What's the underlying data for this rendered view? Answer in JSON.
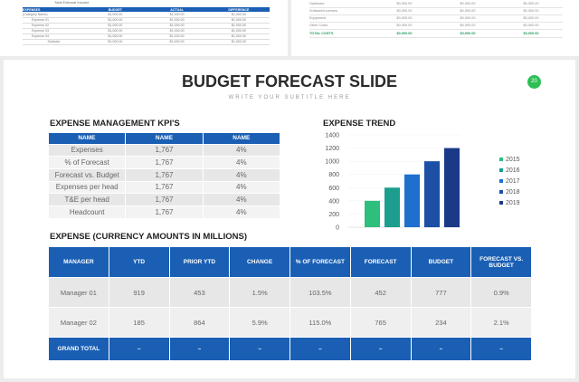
{
  "top_left": {
    "total_label": "Total External Income",
    "header": [
      "EXPENSES",
      "BUDGET",
      "ACTUAL",
      "DIFFERENCE"
    ],
    "rows": [
      [
        "(Category Name)",
        "$1,000.00",
        "$1,000.00",
        "$1,000.00"
      ],
      [
        "Expense 01",
        "$1,000.00",
        "$1,000.00",
        "$1,000.00"
      ],
      [
        "Expense 02",
        "$1,000.00",
        "$1,000.00",
        "$1,000.00"
      ],
      [
        "Expense 03",
        "$1,000.00",
        "$1,000.00",
        "$1,000.00"
      ],
      [
        "Expense 04",
        "$1,000.00",
        "$1,000.00",
        "$1,000.00"
      ],
      [
        "Subtotal",
        "$1,000.00",
        "$1,000.00",
        "$1,000.00"
      ]
    ]
  },
  "top_right": {
    "rows": [
      [
        "Hardware",
        "$0,000.00",
        "$0,000.00",
        "$0,000.00"
      ],
      [
        "Software/Licenses",
        "$0,000.00",
        "$0,000.00",
        "$0,000.00"
      ],
      [
        "Equipment",
        "$0,000.00",
        "$0,000.00",
        "$0,000.00"
      ],
      [
        "Other Costs",
        "$0,000.00",
        "$0,000.00",
        "$0,000.00"
      ],
      [
        "TOTAL COSTS",
        "$0,000.00",
        "$0,000.00",
        "$0,000.00"
      ]
    ]
  },
  "header": {
    "title": "BUDGET FORECAST SLIDE",
    "subtitle": "WRITE YOUR SUBTITLE HERE",
    "page_number": "20"
  },
  "kpi": {
    "heading": "EXPENSE MANAGEMENT KPI'S",
    "columns": [
      "NAME",
      "NAME",
      "NAME"
    ],
    "rows": [
      [
        "Expenses",
        "1,767",
        "4%"
      ],
      [
        "% of Forecast",
        "1,767",
        "4%"
      ],
      [
        "Forecast vs. Budget",
        "1,767",
        "4%"
      ],
      [
        "Expenses per head",
        "1,767",
        "4%"
      ],
      [
        "T&E per head",
        "1,767",
        "4%"
      ],
      [
        "Headcount",
        "1,767",
        "4%"
      ]
    ]
  },
  "chart_data": {
    "type": "bar",
    "title": "EXPENSE TREND",
    "categories": [
      "2015",
      "2016",
      "2017",
      "2018",
      "2019"
    ],
    "values": [
      400,
      600,
      800,
      1000,
      1200
    ],
    "colors": [
      "#2dbf7b",
      "#1b9e8e",
      "#1f6fcf",
      "#1c4fa6",
      "#1a3a88"
    ],
    "ylim": [
      0,
      1400
    ],
    "yticks": [
      0,
      200,
      400,
      600,
      800,
      1000,
      1200,
      1400
    ],
    "legend": "right"
  },
  "expense": {
    "heading": "EXPENSE (CURRENCY AMOUNTS IN MILLIONS)",
    "columns": [
      "MANAGER",
      "YTD",
      "PRIOR YTD",
      "CHANGE",
      "% OF FORECAST",
      "FORECAST",
      "BUDGET",
      "FORECAST VS. BUDGET"
    ],
    "rows": [
      [
        "Manager 01",
        "919",
        "453",
        "1.5%",
        "103.5%",
        "452",
        "777",
        "0.9%"
      ],
      [
        "Manager 02",
        "185",
        "864",
        "5.9%",
        "115.0%",
        "765",
        "234",
        "2.1%"
      ]
    ],
    "total": [
      "GRAND TOTAL",
      "–",
      "–",
      "–",
      "–",
      "–",
      "–",
      "–"
    ]
  }
}
